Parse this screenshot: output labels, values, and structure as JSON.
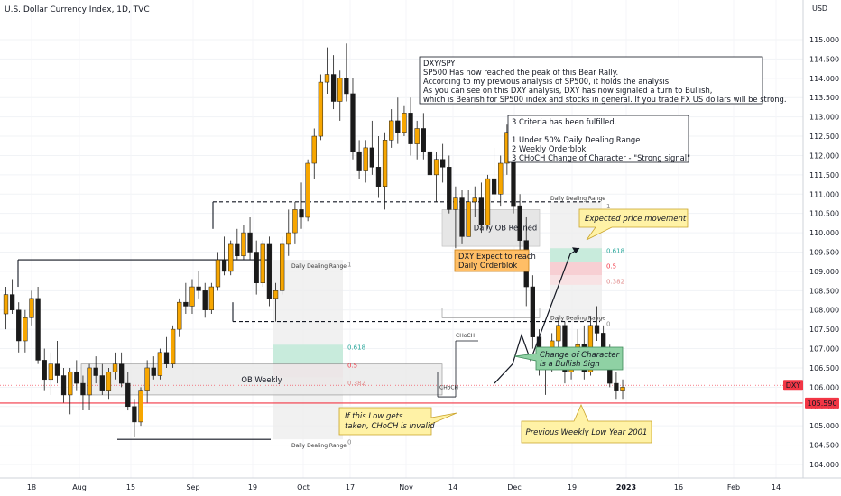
{
  "header": {
    "title": "U.S. Dollar Currency Index, 1D, TVC"
  },
  "colors": {
    "up": "#f7a600",
    "down": "#1a1a1a",
    "current": "#f23645",
    "fib618": "#26a69a",
    "fib05": "#f23645",
    "fib382": "#e08a8a",
    "callout_yellow": "#fff2a6",
    "callout_green": "#8fd1a4",
    "callout_orange": "#ffbe66"
  },
  "chart_data": {
    "type": "candlestick",
    "title": "U.S. Dollar Currency Index, 1D, TVC",
    "ylabel": "USD",
    "ylim": [
      103.5,
      115.7
    ],
    "x_ticks": [
      "18",
      "Aug",
      "15",
      "Sep",
      "19",
      "Oct",
      "17",
      "Nov",
      "14",
      "Dec",
      "19",
      "2023",
      "16",
      "Feb",
      "14"
    ],
    "y_ticks": [
      "104.000",
      "104.500",
      "105.000",
      "105.500",
      "106.000",
      "106.500",
      "107.000",
      "107.500",
      "108.000",
      "108.500",
      "109.000",
      "109.500",
      "110.000",
      "110.500",
      "111.000",
      "111.500",
      "112.000",
      "112.500",
      "113.000",
      "113.500",
      "114.000",
      "114.500",
      "115.000"
    ],
    "price_labels": [
      {
        "label": "DXY",
        "value": 106.05,
        "color": "#f23645"
      },
      {
        "label": "105.590",
        "value": 105.59,
        "color": "#f23645"
      }
    ],
    "candles": [
      [
        107.9,
        108.6,
        107.5,
        108.4
      ],
      [
        108.4,
        108.8,
        107.9,
        108.0
      ],
      [
        108.0,
        108.2,
        106.9,
        107.2
      ],
      [
        107.2,
        108.0,
        106.9,
        107.8
      ],
      [
        107.8,
        108.5,
        107.6,
        108.3
      ],
      [
        108.3,
        108.6,
        106.6,
        106.7
      ],
      [
        106.7,
        107.0,
        105.9,
        106.2
      ],
      [
        106.2,
        106.9,
        105.8,
        106.6
      ],
      [
        106.6,
        107.2,
        106.1,
        106.3
      ],
      [
        106.3,
        106.5,
        105.6,
        105.8
      ],
      [
        105.8,
        106.5,
        105.3,
        106.4
      ],
      [
        106.4,
        106.7,
        105.9,
        106.1
      ],
      [
        106.1,
        106.3,
        105.4,
        105.8
      ],
      [
        105.8,
        106.6,
        105.4,
        106.5
      ],
      [
        106.5,
        106.8,
        106.1,
        106.3
      ],
      [
        106.3,
        106.6,
        105.8,
        105.9
      ],
      [
        105.9,
        106.5,
        105.7,
        106.4
      ],
      [
        106.4,
        106.9,
        106.2,
        106.6
      ],
      [
        106.6,
        106.9,
        106.0,
        106.1
      ],
      [
        106.1,
        106.4,
        105.4,
        105.5
      ],
      [
        105.5,
        105.7,
        104.7,
        105.1
      ],
      [
        105.1,
        106.0,
        105.0,
        105.9
      ],
      [
        105.9,
        106.7,
        105.6,
        106.5
      ],
      [
        106.5,
        106.8,
        106.2,
        106.3
      ],
      [
        106.3,
        107.0,
        106.2,
        106.9
      ],
      [
        106.9,
        107.3,
        106.5,
        106.6
      ],
      [
        106.6,
        107.6,
        106.5,
        107.5
      ],
      [
        107.5,
        108.3,
        107.3,
        108.2
      ],
      [
        108.2,
        108.7,
        107.9,
        108.1
      ],
      [
        108.1,
        108.8,
        107.9,
        108.6
      ],
      [
        108.6,
        109.0,
        108.3,
        108.5
      ],
      [
        108.5,
        108.7,
        107.8,
        108.0
      ],
      [
        108.0,
        108.7,
        107.9,
        108.6
      ],
      [
        108.6,
        109.5,
        108.5,
        109.3
      ],
      [
        109.3,
        109.9,
        108.9,
        109.0
      ],
      [
        109.0,
        109.8,
        108.9,
        109.7
      ],
      [
        109.7,
        110.1,
        109.3,
        109.4
      ],
      [
        109.4,
        110.2,
        109.3,
        110.0
      ],
      [
        110.0,
        110.4,
        109.3,
        109.5
      ],
      [
        109.5,
        109.8,
        108.4,
        108.7
      ],
      [
        108.7,
        109.8,
        108.6,
        109.7
      ],
      [
        109.7,
        109.9,
        108.1,
        108.3
      ],
      [
        108.3,
        108.7,
        107.7,
        108.5
      ],
      [
        108.5,
        109.9,
        108.4,
        109.7
      ],
      [
        109.7,
        110.6,
        109.4,
        110.0
      ],
      [
        110.0,
        110.8,
        109.7,
        110.6
      ],
      [
        110.6,
        111.3,
        110.1,
        110.4
      ],
      [
        110.4,
        111.9,
        110.3,
        111.8
      ],
      [
        111.8,
        112.7,
        111.4,
        112.5
      ],
      [
        112.5,
        114.1,
        112.4,
        113.9
      ],
      [
        113.9,
        114.8,
        113.6,
        114.1
      ],
      [
        114.1,
        114.6,
        113.2,
        113.4
      ],
      [
        113.4,
        114.2,
        112.9,
        114.0
      ],
      [
        114.0,
        114.9,
        113.4,
        113.6
      ],
      [
        113.6,
        114.0,
        111.9,
        112.1
      ],
      [
        112.1,
        112.4,
        111.4,
        111.6
      ],
      [
        111.6,
        112.4,
        111.3,
        112.2
      ],
      [
        112.2,
        112.9,
        111.5,
        111.7
      ],
      [
        111.7,
        112.5,
        110.9,
        111.2
      ],
      [
        111.2,
        112.6,
        110.6,
        112.4
      ],
      [
        112.4,
        113.2,
        112.2,
        112.9
      ],
      [
        112.9,
        113.5,
        112.3,
        112.6
      ],
      [
        112.6,
        113.3,
        112.5,
        113.1
      ],
      [
        113.1,
        113.5,
        112.0,
        112.3
      ],
      [
        112.3,
        112.9,
        111.9,
        112.7
      ],
      [
        112.7,
        113.1,
        111.9,
        112.1
      ],
      [
        112.1,
        112.4,
        111.2,
        111.5
      ],
      [
        111.5,
        112.1,
        110.8,
        111.9
      ],
      [
        111.9,
        112.3,
        111.3,
        111.7
      ],
      [
        111.7,
        112.0,
        110.5,
        110.6
      ],
      [
        110.6,
        111.2,
        109.6,
        110.9
      ],
      [
        110.9,
        111.1,
        109.7,
        109.9
      ],
      [
        109.9,
        111.1,
        109.9,
        110.8
      ],
      [
        110.8,
        111.2,
        110.4,
        110.9
      ],
      [
        110.9,
        111.3,
        110.0,
        110.2
      ],
      [
        110.2,
        111.5,
        110.1,
        111.4
      ],
      [
        111.4,
        112.2,
        110.8,
        111.0
      ],
      [
        111.0,
        112.0,
        110.7,
        111.8
      ],
      [
        111.8,
        112.8,
        111.5,
        112.6
      ],
      [
        112.6,
        113.0,
        110.5,
        110.7
      ],
      [
        110.7,
        111.0,
        109.4,
        109.8
      ],
      [
        109.8,
        110.4,
        108.1,
        108.6
      ],
      [
        108.6,
        108.9,
        107.0,
        107.3
      ],
      [
        107.3,
        107.5,
        106.3,
        106.5
      ],
      [
        106.5,
        106.9,
        105.8,
        106.7
      ],
      [
        106.7,
        107.4,
        106.4,
        107.2
      ],
      [
        107.2,
        107.8,
        106.9,
        107.6
      ],
      [
        107.6,
        107.7,
        106.1,
        106.4
      ],
      [
        106.4,
        107.0,
        106.2,
        106.8
      ],
      [
        106.8,
        107.5,
        106.7,
        107.1
      ],
      [
        107.1,
        107.6,
        106.2,
        106.4
      ],
      [
        106.4,
        107.8,
        106.3,
        107.6
      ],
      [
        107.6,
        108.1,
        107.2,
        107.4
      ],
      [
        107.4,
        107.6,
        106.5,
        106.8
      ],
      [
        106.8,
        107.1,
        106.0,
        106.1
      ],
      [
        106.1,
        106.4,
        105.7,
        105.9
      ],
      [
        105.9,
        106.2,
        105.7,
        106.0
      ]
    ],
    "levels": [
      {
        "label": "Daily Dealing Range",
        "value": 109.3
      },
      {
        "label": "Daily Dealing Range",
        "value": 104.65
      },
      {
        "label": "Daily Dealing Range",
        "value": 110.8
      },
      {
        "label": "Daily Dealing Range",
        "value": 107.7
      }
    ],
    "fib_levels": [
      {
        "label": "1",
        "side": "left"
      },
      {
        "label": "0.618",
        "side": "left"
      },
      {
        "label": "0.5",
        "side": "left"
      },
      {
        "label": "0.382",
        "side": "left"
      },
      {
        "label": "0",
        "side": "left"
      },
      {
        "label": "1",
        "side": "right"
      },
      {
        "label": "0.618",
        "side": "right"
      },
      {
        "label": "0.5",
        "side": "right"
      },
      {
        "label": "0.382",
        "side": "right"
      },
      {
        "label": "0",
        "side": "right"
      }
    ],
    "zones": [
      {
        "label": "OB Weekly"
      },
      {
        "label": "Daily OB Refined"
      }
    ],
    "choch_labels": [
      "CHoCH",
      "CHoCH"
    ],
    "annotations": {
      "dxy_spy": [
        "DXY/SPY",
        "SP500 Has now reached the peak of this Bear Rally.",
        "According to my previous analysis of SP500, it holds the analysis.",
        " As you can see on this DXY analysis, DXY has now signaled a turn to Bullish,",
        " which is Bearish for SP500 index and stocks in general. If you trade FX US dollars will be strong."
      ],
      "criteria": [
        "3 Criteria has been fulfilled.",
        "",
        "1 Under 50% Daily Dealing Range",
        "2 Weekly Orderblok",
        "3 CHoCH Change of Character - \"Strong signal\""
      ],
      "expected": "Expected price movement",
      "choch_sign": [
        "Change of Character",
        "is a  Bullish Sign"
      ],
      "dxy_expect": [
        "DXY Expect to reach",
        "Daily Orderblok"
      ],
      "low_taken": [
        "If this Low gets",
        "taken, CHoCH is invalid"
      ],
      "weekly_low": "Previous Weekly Low Year 2001"
    }
  }
}
